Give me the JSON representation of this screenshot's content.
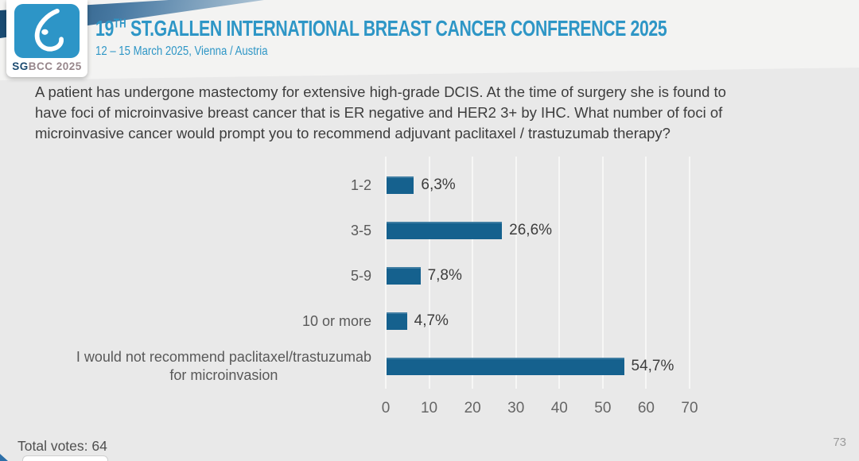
{
  "header": {
    "accent_color": "#2e96c6",
    "title_num": "19",
    "title_sup": "TH",
    "title_rest": " ST.GALLEN INTERNATIONAL BREAST CANCER CONFERENCE 2025",
    "subtitle": "12 – 15 March 2025, Vienna / Austria",
    "logo": {
      "icon": "sgbcc-drop-icon",
      "square_color": "#2d95c7",
      "text_sg": "SG",
      "text_rest": "BCC 2025"
    }
  },
  "question": {
    "text": "A patient has undergone mastectomy for extensive high-grade DCIS.  At the time of surgery she is found to have foci of microinvasive breast cancer that is ER negative and HER2 3+ by IHC.  What number of foci of microinvasive cancer would prompt you to recommend adjuvant paclitaxel / trastuzumab therapy?"
  },
  "chart_data": {
    "type": "bar",
    "orientation": "horizontal",
    "title": "",
    "categories": [
      "1-2",
      "3-5",
      "5-9",
      "10 or more",
      "I would not recommend paclitaxel/trastuzumab\nfor microinvasion"
    ],
    "values": [
      6.3,
      26.6,
      7.8,
      4.7,
      54.7
    ],
    "value_labels": [
      "6,3%",
      "26,6%",
      "7,8%",
      "4,7%",
      "54,7%"
    ],
    "x_ticks": [
      "0",
      "10",
      "20",
      "30",
      "40",
      "50",
      "60",
      "70"
    ],
    "xlim": [
      0,
      70
    ],
    "grid": true,
    "legend": false,
    "bar_color": "#15618e",
    "total_votes": 64
  },
  "footer": {
    "total_votes_label": "Total votes: 64",
    "page_number": "73"
  }
}
